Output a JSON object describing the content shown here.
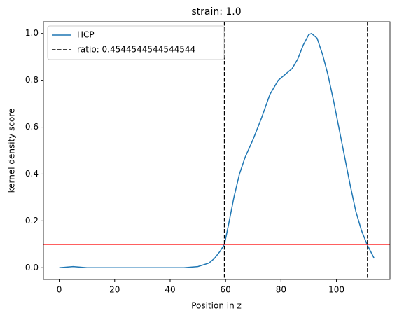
{
  "chart_data": {
    "type": "line",
    "title": "strain: 1.0",
    "xlabel": "Position in z",
    "ylabel": "kernel density score",
    "x": [
      0,
      5,
      10,
      20,
      30,
      40,
      45,
      50,
      54,
      56,
      58,
      59.6,
      61,
      63,
      65,
      67,
      70,
      73,
      76,
      79,
      82,
      84,
      86,
      88,
      90,
      91,
      93,
      95,
      97,
      99,
      101,
      103,
      105,
      107,
      109,
      111,
      113.6
    ],
    "series": [
      {
        "name": "HCP",
        "color": "#1f77b4",
        "values": [
          0.0,
          0.005,
          0.0,
          0.0,
          0.0,
          0.0,
          0.0,
          0.005,
          0.02,
          0.04,
          0.07,
          0.1,
          0.18,
          0.3,
          0.4,
          0.47,
          0.55,
          0.64,
          0.74,
          0.8,
          0.83,
          0.85,
          0.89,
          0.95,
          0.995,
          1.0,
          0.98,
          0.91,
          0.82,
          0.71,
          0.59,
          0.47,
          0.35,
          0.24,
          0.16,
          0.1,
          0.04
        ]
      }
    ],
    "vlines": {
      "name": "ratio: 0.4544544544544544",
      "color": "#000000",
      "values": [
        59.6,
        111.2
      ]
    },
    "hline": {
      "color": "#ff0000",
      "value": 0.1
    },
    "xlim": [
      -5.7,
      119.3
    ],
    "ylim": [
      -0.05,
      1.05
    ],
    "xticks": [
      0,
      20,
      40,
      60,
      80,
      100
    ],
    "yticks": [
      {
        "value": 0,
        "label": "0.0"
      },
      {
        "value": 0.2,
        "label": "0.2"
      },
      {
        "value": 0.4,
        "label": "0.4"
      },
      {
        "value": 0.6,
        "label": "0.6"
      },
      {
        "value": 0.8,
        "label": "0.8"
      },
      {
        "value": 1,
        "label": "1.0"
      }
    ],
    "legend": "upper left"
  }
}
